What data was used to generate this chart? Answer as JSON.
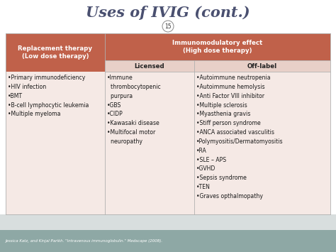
{
  "title": "Uses of IVIG (cont.)",
  "slide_number": "15",
  "background_color": "#ffffff",
  "title_color": "#4a5070",
  "header_bg_color": "#c0614a",
  "header_text_color": "#ffffff",
  "subheader_bg_color": "#e8d0c8",
  "subheader_text_color": "#222222",
  "cell_bg": "#f5e9e5",
  "footer_bg_color": "#8ea8a5",
  "footer_text_color": "#ffffff",
  "footer_text": "Jessica Katz, and Kinjal Parikh. \"Intravenous immunoglobulin.\" Medscape (2008).",
  "col1_header": "Replacement therapy\n(Low dose therapy)",
  "col23_header": "Immunomodulatory effect\n(High dose therapy)",
  "col2_subheader": "Licensed",
  "col3_subheader": "Off-label",
  "col1_items": [
    "•Primary immunodeficiency",
    "•HIV infection",
    "•BMT",
    "•B-cell lymphocytic leukemia",
    "•Multiple myeloma"
  ],
  "col2_items": [
    "•Immune\n  thrombocytopenic\n  purpura",
    "•GBS",
    "•CIDP",
    "•Kawasaki disease",
    "•Multifocal motor\n  neuropathy"
  ],
  "col3_items": [
    "•Autoimmune neutropenia",
    "•Autoimmune hemolysis",
    "•Anti Factor VIII inhibitor",
    "•Multiple sclerosis",
    "•Myasthenia gravis",
    "•Stiff person syndrome",
    "•ANCA associated vasculitis",
    "•Polymyositis/Dermatomyositis",
    "•RA",
    "•SLE – APS",
    "•GVHD",
    "•Sepsis syndrome",
    "•TEN",
    "•Graves opthalmopathy"
  ],
  "fig_width": 4.74,
  "fig_height": 3.55,
  "dpi": 100
}
